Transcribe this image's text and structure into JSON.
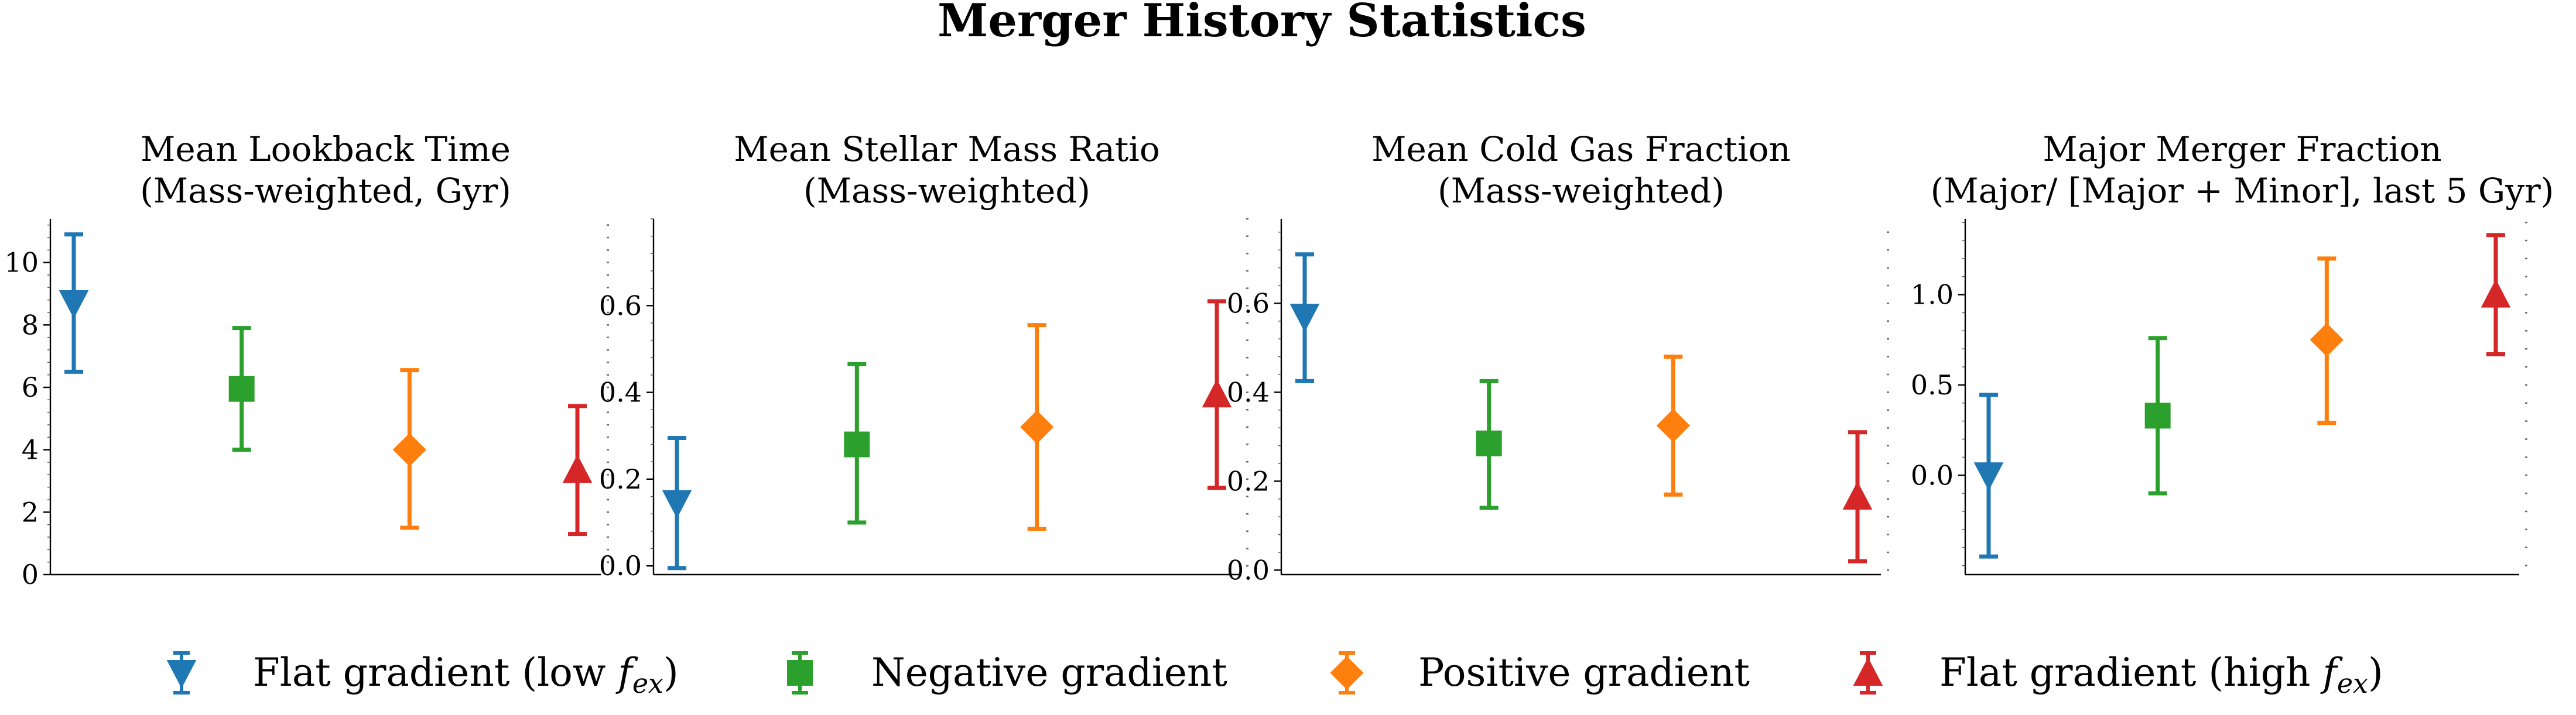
{
  "title": "Merger History Statistics",
  "colors": {
    "flat_low": "#1f77b4",
    "negative": "#2ca02c",
    "positive": "#ff7f0e",
    "flat_high": "#d62728",
    "axis": "#000000"
  },
  "legend": [
    {
      "label": "Flat gradient (low ",
      "sub": "f",
      "subscript": "ex",
      "suffix": ")",
      "marker": "triangle-down",
      "color_key": "flat_low"
    },
    {
      "label": "Negative gradient",
      "marker": "square",
      "color_key": "negative"
    },
    {
      "label": "Positive gradient",
      "marker": "diamond",
      "color_key": "positive"
    },
    {
      "label": "Flat gradient (high ",
      "sub": "f",
      "subscript": "ex",
      "suffix": ")",
      "marker": "triangle-up",
      "color_key": "flat_high"
    }
  ],
  "chart_data": [
    {
      "type": "scatter",
      "title_line1": "Mean Lookback Time",
      "title_line2": "(Mass-weighted, Gyr)",
      "ylim": [
        0,
        11.4
      ],
      "yticks": [
        0,
        2,
        4,
        6,
        8,
        10
      ],
      "ytick_labels": [
        "0",
        "2",
        "4",
        "6",
        "8",
        "10"
      ],
      "minor_right_step": 0.4,
      "points": [
        {
          "group": "Flat gradient (low f_ex)",
          "y": 8.7,
          "low": 6.5,
          "high": 10.9,
          "marker": "triangle-down",
          "color_key": "flat_low"
        },
        {
          "group": "Negative gradient",
          "y": 5.95,
          "low": 4.0,
          "high": 7.9,
          "marker": "square",
          "color_key": "negative"
        },
        {
          "group": "Positive gradient",
          "y": 4.0,
          "low": 1.5,
          "high": 6.55,
          "marker": "diamond",
          "color_key": "positive"
        },
        {
          "group": "Flat gradient (high f_ex)",
          "y": 3.35,
          "low": 1.3,
          "high": 5.4,
          "marker": "triangle-up",
          "color_key": "flat_high"
        }
      ]
    },
    {
      "type": "scatter",
      "title_line1": "Mean Stellar Mass Ratio",
      "title_line2": "(Mass-weighted)",
      "ylim": [
        -0.02,
        0.8
      ],
      "yticks": [
        0.0,
        0.2,
        0.4,
        0.6
      ],
      "ytick_labels": [
        "0.0",
        "0.2",
        "0.4",
        "0.6"
      ],
      "minor_right_step": 0.04,
      "points": [
        {
          "group": "Flat gradient (low f_ex)",
          "y": 0.145,
          "low": -0.005,
          "high": 0.295,
          "marker": "triangle-down",
          "color_key": "flat_low"
        },
        {
          "group": "Negative gradient",
          "y": 0.28,
          "low": 0.1,
          "high": 0.465,
          "marker": "square",
          "color_key": "negative"
        },
        {
          "group": "Positive gradient",
          "y": 0.32,
          "low": 0.085,
          "high": 0.555,
          "marker": "diamond",
          "color_key": "positive"
        },
        {
          "group": "Flat gradient (high f_ex)",
          "y": 0.395,
          "low": 0.18,
          "high": 0.61,
          "marker": "triangle-up",
          "color_key": "flat_high"
        }
      ]
    },
    {
      "type": "scatter",
      "title_line1": "Mean Cold Gas Fraction",
      "title_line2": "(Mass-weighted)",
      "ylim": [
        -0.01,
        0.79
      ],
      "yticks": [
        0.0,
        0.2,
        0.4,
        0.6
      ],
      "ytick_labels": [
        "0.0",
        "0.2",
        "0.4",
        "0.6"
      ],
      "minor_right_step": 0.04,
      "points": [
        {
          "group": "Flat gradient (low f_ex)",
          "y": 0.57,
          "low": 0.425,
          "high": 0.71,
          "marker": "triangle-down",
          "color_key": "flat_low"
        },
        {
          "group": "Negative gradient",
          "y": 0.285,
          "low": 0.14,
          "high": 0.425,
          "marker": "square",
          "color_key": "negative"
        },
        {
          "group": "Positive gradient",
          "y": 0.325,
          "low": 0.17,
          "high": 0.48,
          "marker": "diamond",
          "color_key": "positive"
        },
        {
          "group": "Flat gradient (high f_ex)",
          "y": 0.165,
          "low": 0.02,
          "high": 0.31,
          "marker": "triangle-up",
          "color_key": "flat_high"
        }
      ]
    },
    {
      "type": "scatter",
      "title_line1": "Major Merger Fraction",
      "title_line2": "(Major/ [Major + Minor], last 5 Gyr)",
      "ylim": [
        -0.55,
        1.42
      ],
      "yticks": [
        0.0,
        0.5,
        1.0
      ],
      "ytick_labels": [
        "0.0",
        "0.5",
        "1.0"
      ],
      "minor_right_step": 0.1,
      "points": [
        {
          "group": "Flat gradient (low f_ex)",
          "y": 0.0,
          "low": -0.45,
          "high": 0.445,
          "marker": "triangle-down",
          "color_key": "flat_low"
        },
        {
          "group": "Negative gradient",
          "y": 0.33,
          "low": -0.1,
          "high": 0.76,
          "marker": "square",
          "color_key": "negative"
        },
        {
          "group": "Positive gradient",
          "y": 0.75,
          "low": 0.29,
          "high": 1.2,
          "marker": "diamond",
          "color_key": "positive"
        },
        {
          "group": "Flat gradient (high f_ex)",
          "y": 1.0,
          "low": 0.67,
          "high": 1.33,
          "marker": "triangle-up",
          "color_key": "flat_high"
        }
      ]
    }
  ]
}
